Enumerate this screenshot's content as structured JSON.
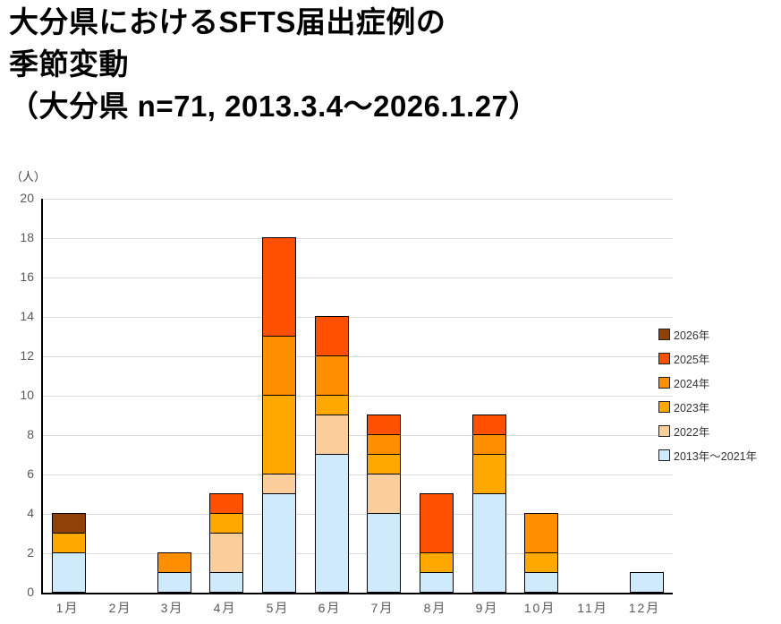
{
  "title": {
    "lines": [
      "大分県におけるSFTS届出症例の",
      "季節変動",
      "（大分県 n=71, 2013.3.4～2026.1.27）"
    ]
  },
  "chart_data": {
    "type": "bar",
    "stacked": true,
    "title": "大分県におけるSFTS届出症例の季節変動（大分県 n=71, 2013.3.4～2026.1.27）",
    "unit_label": "（人）",
    "xlabel": "",
    "ylabel": "（人）",
    "categories": [
      "1月",
      "2月",
      "3月",
      "4月",
      "5月",
      "6月",
      "7月",
      "8月",
      "9月",
      "10月",
      "11月",
      "12月"
    ],
    "series": [
      {
        "name": "2013年～2021年",
        "color": "#CEEAFB",
        "values": [
          2,
          0,
          1,
          1,
          5,
          7,
          4,
          1,
          5,
          1,
          0,
          1
        ]
      },
      {
        "name": "2022年",
        "color": "#FCCE9C",
        "values": [
          0,
          0,
          0,
          2,
          1,
          2,
          2,
          0,
          0,
          0,
          0,
          0
        ]
      },
      {
        "name": "2023年",
        "color": "#FFA800",
        "values": [
          1,
          0,
          0,
          1,
          4,
          1,
          1,
          1,
          2,
          1,
          0,
          0
        ]
      },
      {
        "name": "2024年",
        "color": "#FF8E00",
        "values": [
          0,
          0,
          1,
          0,
          3,
          2,
          1,
          0,
          1,
          2,
          0,
          0
        ]
      },
      {
        "name": "2025年",
        "color": "#FF5000",
        "values": [
          0,
          0,
          0,
          1,
          5,
          2,
          1,
          3,
          1,
          0,
          0,
          0
        ]
      },
      {
        "name": "2026年",
        "color": "#8F4107",
        "values": [
          1,
          0,
          0,
          0,
          0,
          0,
          0,
          0,
          0,
          0,
          0,
          0
        ]
      }
    ],
    "totals": [
      4,
      0,
      2,
      5,
      18,
      14,
      9,
      5,
      9,
      4,
      0,
      1
    ],
    "n_total": 71,
    "ylim": [
      0,
      20
    ],
    "ytick_step": 2,
    "grid": true,
    "grid_color": "#D9D9D9",
    "tick_label_color": "#595959",
    "legend_position": "right",
    "legend_order": "reversed"
  }
}
